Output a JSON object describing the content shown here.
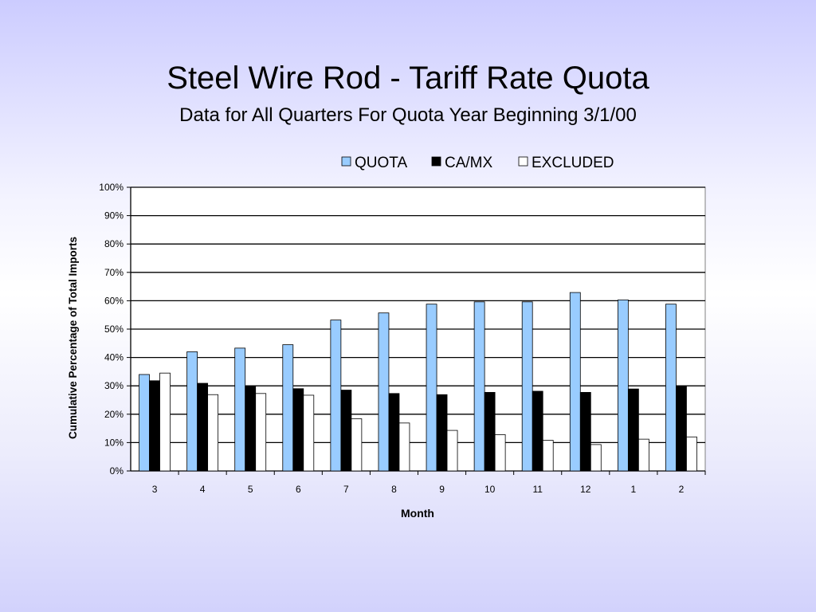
{
  "slide": {
    "title": "Steel Wire Rod - Tariff Rate Quota",
    "subtitle": "Data for All Quarters For Quota Year Beginning 3/1/00"
  },
  "colors": {
    "quota": "#99ccff",
    "camx": "#000000",
    "excluded": "#ffffff"
  },
  "chart_data": {
    "type": "bar",
    "categories": [
      "3",
      "4",
      "5",
      "6",
      "7",
      "8",
      "9",
      "10",
      "11",
      "12",
      "1",
      "2"
    ],
    "series": [
      {
        "name": "QUOTA",
        "values": [
          34,
          42,
          43.3,
          44.5,
          53.2,
          55.7,
          58.8,
          59.6,
          59.6,
          62.9,
          60.3,
          58.8
        ]
      },
      {
        "name": "CA/MX",
        "values": [
          31.8,
          30.9,
          30,
          29,
          28.5,
          27.3,
          26.9,
          27.7,
          28.1,
          27.7,
          28.9,
          29.8
        ]
      },
      {
        "name": "EXCLUDED",
        "values": [
          34.5,
          26.9,
          27.3,
          26.7,
          18.4,
          16.9,
          14.3,
          12.8,
          10.8,
          9.3,
          11.2,
          12
        ]
      }
    ],
    "title": "",
    "xlabel": "Month",
    "ylabel": "Cumulative Percentage of Total Imports",
    "ylim": [
      0,
      100
    ],
    "yticks": [
      "0%",
      "10%",
      "20%",
      "30%",
      "40%",
      "50%",
      "60%",
      "70%",
      "80%",
      "90%",
      "100%"
    ],
    "grid": true,
    "legend_position": "top-right"
  }
}
